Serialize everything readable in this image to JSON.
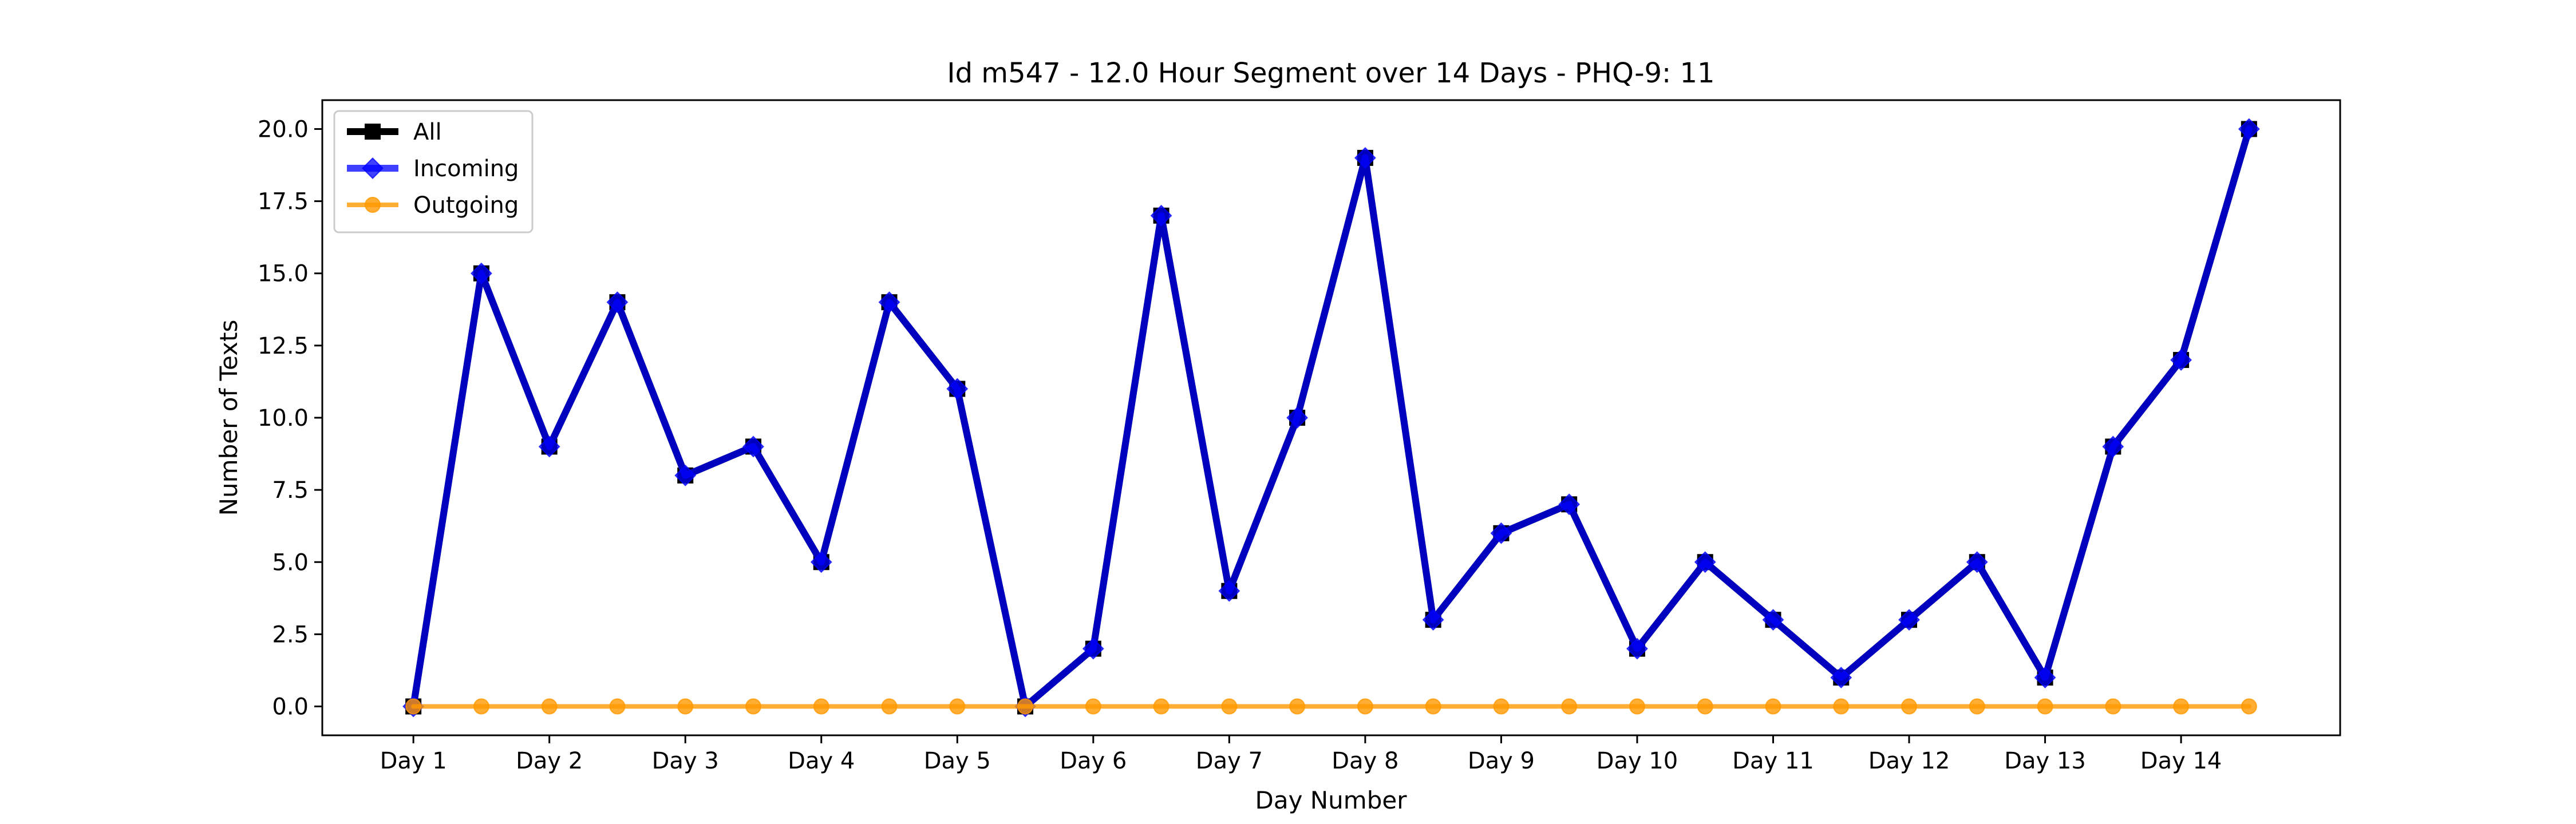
{
  "chart_data": {
    "type": "line",
    "title": "Id m547 - 12.0 Hour Segment over 14 Days - PHQ-9: 11",
    "xlabel": "Day Number",
    "ylabel": "Number of Texts",
    "x_ticks": [
      "Day 1",
      "Day 2",
      "Day 3",
      "Day 4",
      "Day 5",
      "Day 6",
      "Day 7",
      "Day 8",
      "Day 9",
      "Day 10",
      "Day 11",
      "Day 12",
      "Day 13",
      "Day 14"
    ],
    "y_ticks": [
      "0.0",
      "2.5",
      "5.0",
      "7.5",
      "10.0",
      "12.5",
      "15.0",
      "17.5",
      "20.0"
    ],
    "ylim": [
      -1,
      21
    ],
    "xlim": [
      -0.67,
      14.17
    ],
    "grid": false,
    "legend_position": "top-left",
    "x": [
      0,
      0.5,
      1,
      1.5,
      2,
      2.5,
      3,
      3.5,
      4,
      4.5,
      5,
      5.5,
      6,
      6.5,
      7,
      7.5,
      8,
      8.5,
      9,
      9.5,
      10,
      10.5,
      11,
      11.5,
      12,
      12.5,
      13,
      13.5
    ],
    "series": [
      {
        "name": "All",
        "color": "#000000",
        "marker": "square",
        "values": [
          0,
          15,
          9,
          14,
          8,
          9,
          5,
          14,
          11,
          0,
          2,
          17,
          4,
          10,
          19,
          3,
          6,
          7,
          2,
          5,
          3,
          1,
          3,
          5,
          1,
          9,
          12,
          20
        ]
      },
      {
        "name": "Incoming",
        "color": "#0000ff",
        "marker": "diamond",
        "values": [
          0,
          15,
          9,
          14,
          8,
          9,
          5,
          14,
          11,
          0,
          2,
          17,
          4,
          10,
          19,
          3,
          6,
          7,
          2,
          5,
          3,
          1,
          3,
          5,
          1,
          9,
          12,
          20
        ]
      },
      {
        "name": "Outgoing",
        "color": "#ff9900",
        "marker": "circle",
        "values": [
          0,
          0,
          0,
          0,
          0,
          0,
          0,
          0,
          0,
          0,
          0,
          0,
          0,
          0,
          0,
          0,
          0,
          0,
          0,
          0,
          0,
          0,
          0,
          0,
          0,
          0,
          0,
          0
        ]
      }
    ]
  }
}
